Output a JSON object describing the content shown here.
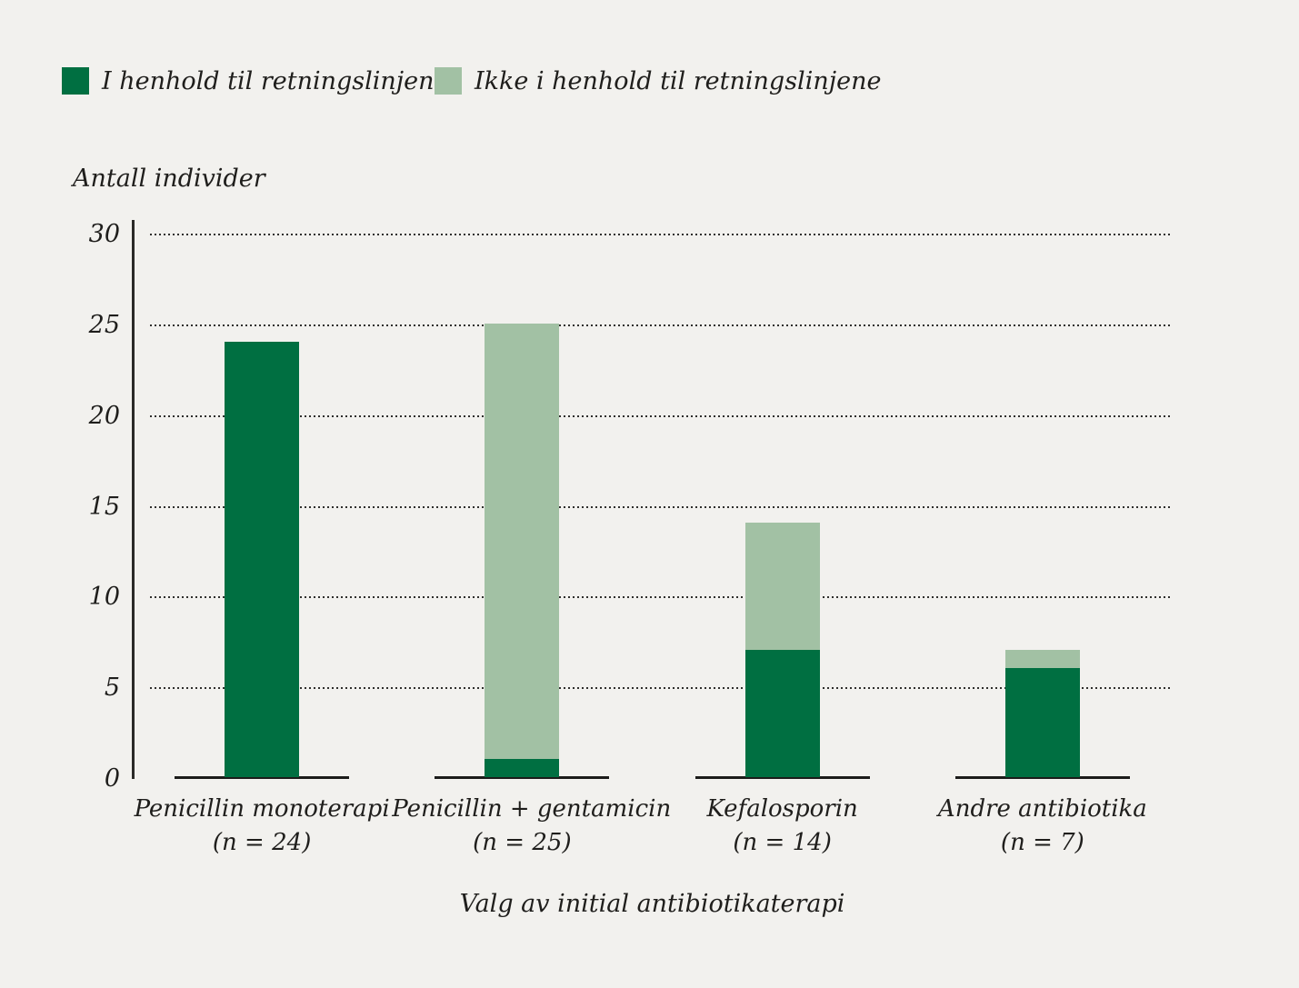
{
  "legend": {
    "items": [
      {
        "label": "I henhold til retningslinjene",
        "color": "#006f41"
      },
      {
        "label": "Ikke i henhold til retningslinjene",
        "color": "#a2c1a4"
      }
    ]
  },
  "chart_data": {
    "type": "bar",
    "stacked": true,
    "title": "",
    "ylabel": "Antall individer",
    "xlabel": "Valg av initial antibiotikaterapi",
    "categories": [
      {
        "label": "Penicillin monoterapi",
        "n": "(n = 24)"
      },
      {
        "label": "Penicillin + gentamicin",
        "n": "(n = 25)"
      },
      {
        "label": "Kefalosporin",
        "n": "(n = 14)"
      },
      {
        "label": "Andre antibiotika",
        "n": "(n = 7)"
      }
    ],
    "series": [
      {
        "name": "I henhold til retningslinjene",
        "color": "#006f41",
        "values": [
          24,
          1,
          7,
          6
        ]
      },
      {
        "name": "Ikke i henhold til retningslinjene",
        "color": "#a2c1a4",
        "values": [
          0,
          24,
          7,
          1
        ]
      }
    ],
    "totals": [
      24,
      25,
      14,
      7
    ],
    "yticks": [
      0,
      5,
      10,
      15,
      20,
      25,
      30
    ],
    "ylim": [
      0,
      30
    ],
    "grid": "horizontal-dotted",
    "legend_position": "top-left",
    "colors": {
      "background": "#f2f1ee",
      "text": "#1f1e1c",
      "axis": "#2b2a28",
      "gridline": "#2f2f2d"
    }
  }
}
